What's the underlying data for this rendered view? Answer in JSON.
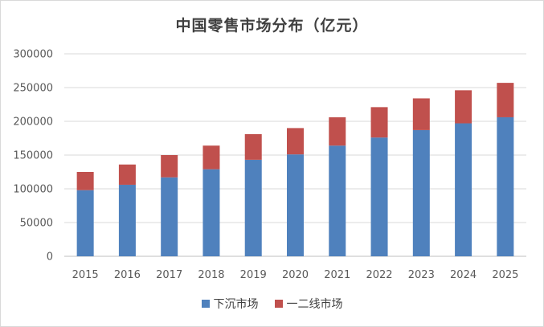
{
  "chart_data": {
    "type": "bar",
    "stacked": true,
    "title": "中国零售市场分布（亿元）",
    "categories": [
      "2015",
      "2016",
      "2017",
      "2018",
      "2019",
      "2020",
      "2021",
      "2022",
      "2023",
      "2024",
      "2025"
    ],
    "series": [
      {
        "name": "下沉市场",
        "color": "#4f81bd",
        "values": [
          98000,
          106000,
          117000,
          129000,
          143000,
          151000,
          164000,
          176000,
          187000,
          197000,
          206000
        ]
      },
      {
        "name": "一二线市场",
        "color": "#c0504d",
        "values": [
          27000,
          30000,
          33000,
          35000,
          38000,
          39000,
          42000,
          45000,
          47000,
          49000,
          51000
        ]
      }
    ],
    "ylim": [
      0,
      300000
    ],
    "yticks": [
      "0",
      "50000",
      "100000",
      "150000",
      "200000",
      "250000",
      "300000"
    ],
    "grid": true,
    "legend_position": "bottom"
  }
}
